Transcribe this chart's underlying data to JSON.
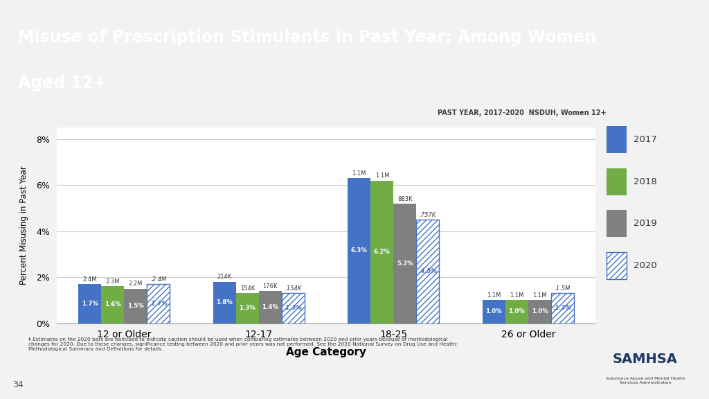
{
  "title_line1": "Misuse of Prescription Stimulants in Past Year: Among Women",
  "title_line2": "Aged 12+",
  "subtitle": "PAST YEAR, 2017-2020  NSDUH, Women 12+",
  "xlabel": "Age Category",
  "ylabel": "Percent Misusing in Past Year",
  "categories": [
    "12 or Older",
    "12-17",
    "18-25",
    "26 or Older"
  ],
  "years": [
    "2017",
    "2018",
    "2019",
    "2020"
  ],
  "values": {
    "12 or Older": [
      1.7,
      1.6,
      1.5,
      1.7
    ],
    "12-17": [
      1.8,
      1.3,
      1.4,
      1.3
    ],
    "18-25": [
      6.3,
      6.2,
      5.2,
      4.5
    ],
    "26 or Older": [
      1.0,
      1.0,
      1.0,
      1.3
    ]
  },
  "annotations": {
    "12 or Older": [
      "2.4M",
      "2.3M",
      "2.2M",
      "․2.4M"
    ],
    "12-17": [
      "214K",
      "154K",
      "176K",
      "․154K"
    ],
    "18-25": [
      "1.1M",
      "1.1M",
      "883K",
      "․757K"
    ],
    "26 or Older": [
      "1.1M",
      "1.1M",
      "1.1M",
      "․1.5M"
    ]
  },
  "bar_labels": {
    "12 or Older": [
      "1.7%",
      "1.6%",
      "1.5%",
      "․1.7%"
    ],
    "12-17": [
      "1.8%",
      "1.3%",
      "1.4%",
      "․1.3%"
    ],
    "18-25": [
      "6.3%",
      "6.2%",
      "5.2%",
      "․4.5%"
    ],
    "26 or Older": [
      "1.0%",
      "1.0%",
      "1.0%",
      "․1.3%"
    ]
  },
  "colors": {
    "2017": "#4472C4",
    "2018": "#70AD47",
    "2019": "#808080",
    "2020_face": "#FFFFFF",
    "2020_hatch": "#4472C4",
    "2020_edge": "#4472C4"
  },
  "title_bg": "#1F3864",
  "title_color": "#FFFFFF",
  "bg_color": "#F2F2F2",
  "plot_bg": "#FFFFFF",
  "subtitle_color": "#404040",
  "ylim": [
    0,
    8.5
  ],
  "yticks": [
    0,
    2,
    4,
    6,
    8
  ],
  "footnote": "‡ Estimates on the 2020 bars are italicized to indicate caution should be used when comparing estimates between 2020 and prior years because of methodological\nchanges for 2020. Due to these changes, significance testing between 2020 and prior years was not performed. See the 2020 National Survey on Drug Use and Health:\nMethodological Summary and Definitions for details."
}
